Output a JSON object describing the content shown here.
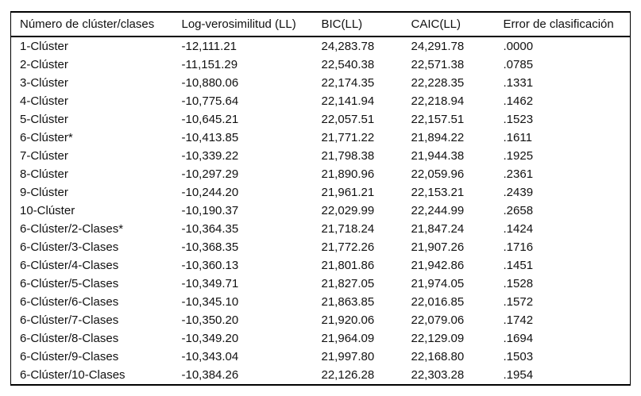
{
  "table": {
    "columns": [
      "Número de clúster/clases",
      "Log-verosimilitud (LL)",
      "BIC(LL)",
      "CAIC(LL)",
      "Error de clasificación"
    ],
    "rows": [
      [
        "1-Clúster",
        "-12,111.21",
        "24,283.78",
        "24,291.78",
        ".0000"
      ],
      [
        "2-Clúster",
        "-11,151.29",
        "22,540.38",
        "22,571.38",
        ".0785"
      ],
      [
        "3-Clúster",
        "-10,880.06",
        "22,174.35",
        "22,228.35",
        ".1331"
      ],
      [
        "4-Clúster",
        "-10,775.64",
        "22,141.94",
        "22,218.94",
        ".1462"
      ],
      [
        "5-Clúster",
        "-10,645.21",
        "22,057.51",
        "22,157.51",
        ".1523"
      ],
      [
        "6-Clúster*",
        "-10,413.85",
        "21,771.22",
        "21,894.22",
        ".1611"
      ],
      [
        "7-Clúster",
        "-10,339.22",
        "21,798.38",
        "21,944.38",
        ".1925"
      ],
      [
        "8-Clúster",
        "-10,297.29",
        "21,890.96",
        "22,059.96",
        ".2361"
      ],
      [
        "9-Clúster",
        "-10,244.20",
        "21,961.21",
        "22,153.21",
        ".2439"
      ],
      [
        "10-Clúster",
        "-10,190.37",
        "22,029.99",
        "22,244.99",
        ".2658"
      ],
      [
        "6-Clúster/2-Clases*",
        "-10,364.35",
        "21,718.24",
        "21,847.24",
        ".1424"
      ],
      [
        "6-Clúster/3-Clases",
        "-10,368.35",
        "21,772.26",
        "21,907.26",
        ".1716"
      ],
      [
        "6-Clúster/4-Clases",
        "-10,360.13",
        "21,801.86",
        "21,942.86",
        ".1451"
      ],
      [
        "6-Clúster/5-Clases",
        "-10,349.71",
        "21,827.05",
        "21,974.05",
        ".1528"
      ],
      [
        "6-Clúster/6-Clases",
        "-10,345.10",
        "21,863.85",
        "22,016.85",
        ".1572"
      ],
      [
        "6-Clúster/7-Clases",
        "-10,350.20",
        "21,920.06",
        "22,079.06",
        ".1742"
      ],
      [
        "6-Clúster/8-Clases",
        "-10,349.20",
        "21,964.09",
        "22,129.09",
        ".1694"
      ],
      [
        "6-Clúster/9-Clases",
        "-10,343.04",
        "21,997.80",
        "22,168.80",
        ".1503"
      ],
      [
        "6-Clúster/10-Clases",
        "-10,384.26",
        "22,126.28",
        "22,303.28",
        ".1954"
      ]
    ]
  }
}
